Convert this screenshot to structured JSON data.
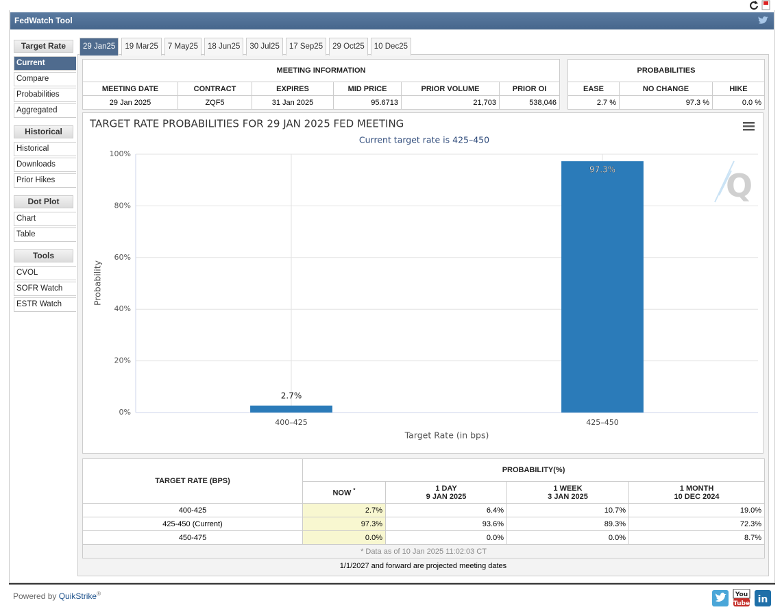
{
  "header": {
    "title": "FedWatch Tool"
  },
  "sidebar": [
    {
      "title": "Target Rate",
      "items": [
        "Current",
        "Compare",
        "Probabilities",
        "Aggregated"
      ]
    },
    {
      "title": "Historical",
      "items": [
        "Historical",
        "Downloads",
        "Prior Hikes"
      ]
    },
    {
      "title": "Dot Plot",
      "items": [
        "Chart",
        "Table"
      ]
    },
    {
      "title": "Tools",
      "items": [
        "CVOL",
        "SOFR Watch",
        "ESTR Watch"
      ]
    }
  ],
  "tabs": [
    "29 Jan25",
    "19 Mar25",
    "7 May25",
    "18 Jun25",
    "30 Jul25",
    "17 Sep25",
    "29 Oct25",
    "10 Dec25"
  ],
  "meeting_info": {
    "title": "MEETING INFORMATION",
    "columns": [
      "MEETING DATE",
      "CONTRACT",
      "EXPIRES",
      "MID PRICE",
      "PRIOR VOLUME",
      "PRIOR OI"
    ],
    "row": [
      "29 Jan 2025",
      "ZQF5",
      "31 Jan 2025",
      "95.6713",
      "21,703",
      "538,046"
    ]
  },
  "probabilities": {
    "title": "PROBABILITIES",
    "columns": [
      "EASE",
      "NO CHANGE",
      "HIKE"
    ],
    "row": [
      "2.7 %",
      "97.3 %",
      "0.0 %"
    ]
  },
  "chart_data": {
    "type": "bar",
    "title": "TARGET RATE PROBABILITIES FOR 29 JAN 2025 FED MEETING",
    "subtitle": "Current target rate is 425–450",
    "x_label": "Target Rate (in bps)",
    "y_label": "Probability",
    "categories": [
      "400–425",
      "425–450"
    ],
    "values": [
      2.7,
      97.3
    ],
    "value_labels": [
      "2.7%",
      "97.3%"
    ],
    "color": "#2b7bb9",
    "ylim": [
      0,
      100
    ],
    "yticks": [
      {
        "value": 0,
        "label": "0%"
      },
      {
        "value": 20,
        "label": "20%"
      },
      {
        "value": 40,
        "label": "40%"
      },
      {
        "value": 60,
        "label": "60%"
      },
      {
        "value": 80,
        "label": "80%"
      },
      {
        "value": 100,
        "label": "100%"
      }
    ],
    "grid": true
  },
  "probability_table": {
    "row_header": "TARGET RATE (BPS)",
    "group_header": "PROBABILITY(%)",
    "columns": [
      {
        "label": "NOW",
        "note": "*"
      },
      {
        "label": "1 DAY",
        "date": "9 JAN 2025"
      },
      {
        "label": "1 WEEK",
        "date": "3 JAN 2025"
      },
      {
        "label": "1 MONTH",
        "date": "10 DEC 2024"
      }
    ],
    "rows": [
      [
        "400-425",
        "2.7%",
        "6.4%",
        "10.7%",
        "19.0%"
      ],
      [
        "425-450 (Current)",
        "97.3%",
        "93.6%",
        "89.3%",
        "72.3%"
      ],
      [
        "450-475",
        "0.0%",
        "0.0%",
        "0.0%",
        "8.7%"
      ]
    ],
    "footnote": "* Data as of 10 Jan 2025 11:02:03 CT"
  },
  "projection_note": "1/1/2027 and forward are projected meeting dates",
  "footer": {
    "powered_by": "Powered by",
    "brand": "QuikStrike",
    "mark": "®"
  }
}
